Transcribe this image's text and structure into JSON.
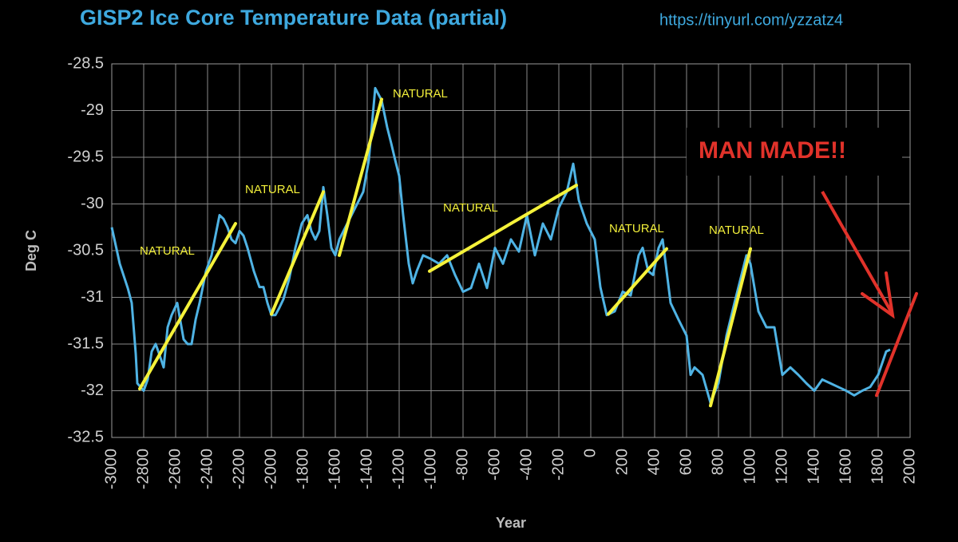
{
  "chart_data": {
    "type": "line",
    "title": "GISP2 Ice Core Temperature Data (partial)",
    "source": "https://tinyurl.com/yzzatz4",
    "x_label": "Year",
    "y_label": "Deg C",
    "xlim": [
      -3000,
      2000
    ],
    "ylim": [
      -32.5,
      -28.5
    ],
    "xticks": [
      -3000,
      -2800,
      -2600,
      -2400,
      -2200,
      -2000,
      -1800,
      -1600,
      -1400,
      -1200,
      -1000,
      -800,
      -600,
      -400,
      -200,
      0,
      200,
      400,
      600,
      800,
      1000,
      1200,
      1400,
      1600,
      1800,
      2000
    ],
    "yticks": [
      -28.5,
      -29,
      -29.5,
      -30,
      -30.5,
      -31,
      -31.5,
      -32,
      -32.5
    ],
    "grid": true,
    "series": [
      {
        "name": "GISP2",
        "color": "#4fb3e4",
        "x": [
          -3000,
          -2950,
          -2900,
          -2875,
          -2850,
          -2840,
          -2800,
          -2775,
          -2750,
          -2725,
          -2700,
          -2675,
          -2650,
          -2625,
          -2590,
          -2550,
          -2525,
          -2500,
          -2475,
          -2450,
          -2410,
          -2375,
          -2325,
          -2300,
          -2275,
          -2250,
          -2225,
          -2200,
          -2175,
          -2150,
          -2110,
          -2075,
          -2050,
          -2025,
          -2000,
          -1975,
          -1950,
          -1925,
          -1890,
          -1850,
          -1810,
          -1775,
          -1750,
          -1725,
          -1700,
          -1675,
          -1650,
          -1625,
          -1600,
          -1575,
          -1525,
          -1475,
          -1425,
          -1390,
          -1350,
          -1310,
          -1275,
          -1250,
          -1225,
          -1200,
          -1175,
          -1140,
          -1115,
          -1090,
          -1050,
          -1000,
          -950,
          -900,
          -850,
          -800,
          -750,
          -700,
          -650,
          -600,
          -550,
          -500,
          -450,
          -400,
          -350,
          -300,
          -250,
          -200,
          -150,
          -110,
          -75,
          -25,
          25,
          60,
          100,
          150,
          200,
          250,
          300,
          325,
          360,
          390,
          425,
          450,
          475,
          500,
          550,
          600,
          625,
          650,
          700,
          750,
          800,
          850,
          900,
          950,
          975,
          1000,
          1050,
          1100,
          1150,
          1200,
          1250,
          1300,
          1350,
          1400,
          1450,
          1500,
          1550,
          1600,
          1650,
          1700,
          1750,
          1800,
          1850,
          1875
        ],
        "values": [
          -30.25,
          -30.64,
          -30.9,
          -31.06,
          -31.6,
          -31.92,
          -32.0,
          -31.88,
          -31.58,
          -31.5,
          -31.62,
          -31.75,
          -31.32,
          -31.19,
          -31.06,
          -31.45,
          -31.5,
          -31.5,
          -31.24,
          -31.06,
          -30.72,
          -30.55,
          -30.12,
          -30.16,
          -30.25,
          -30.38,
          -30.42,
          -30.29,
          -30.34,
          -30.47,
          -30.72,
          -30.89,
          -30.89,
          -31.06,
          -31.19,
          -31.19,
          -31.11,
          -31.02,
          -30.81,
          -30.47,
          -30.21,
          -30.12,
          -30.29,
          -30.38,
          -30.29,
          -29.82,
          -30.12,
          -30.47,
          -30.55,
          -30.38,
          -30.21,
          -30.04,
          -29.87,
          -29.53,
          -28.76,
          -28.89,
          -29.18,
          -29.35,
          -29.53,
          -29.7,
          -30.12,
          -30.64,
          -30.85,
          -30.72,
          -30.55,
          -30.59,
          -30.64,
          -30.55,
          -30.76,
          -30.94,
          -30.9,
          -30.64,
          -30.9,
          -30.47,
          -30.64,
          -30.38,
          -30.51,
          -30.12,
          -30.55,
          -30.21,
          -30.38,
          -30.04,
          -29.87,
          -29.57,
          -29.96,
          -30.21,
          -30.38,
          -30.89,
          -31.19,
          -31.15,
          -30.94,
          -30.98,
          -30.55,
          -30.47,
          -30.72,
          -30.76,
          -30.47,
          -30.38,
          -30.72,
          -31.06,
          -31.24,
          -31.41,
          -31.83,
          -31.75,
          -31.83,
          -32.13,
          -31.92,
          -31.41,
          -31.06,
          -30.72,
          -30.55,
          -30.64,
          -31.15,
          -31.32,
          -31.32,
          -31.83,
          -31.75,
          -31.83,
          -31.92,
          -32.0,
          -31.88,
          -31.92,
          -31.96,
          -32.0,
          -32.05,
          -32.0,
          -31.96,
          -31.83,
          -31.58,
          -31.56
        ]
      }
    ],
    "annotations": [
      {
        "label": "NATURAL",
        "color": "#f5f23a",
        "line": [
          -2825,
          -31.98,
          -2225,
          -30.21
        ]
      },
      {
        "label": "NATURAL",
        "color": "#f5f23a",
        "line": [
          -2000,
          -31.18,
          -1675,
          -29.87
        ]
      },
      {
        "label": "NATURAL",
        "color": "#f5f23a",
        "line": [
          -1575,
          -30.55,
          -1310,
          -28.88
        ]
      },
      {
        "label": "NATURAL",
        "color": "#f5f23a",
        "line": [
          -1010,
          -30.72,
          -90,
          -29.8
        ]
      },
      {
        "label": "NATURAL",
        "color": "#f5f23a",
        "line": [
          110,
          -31.18,
          475,
          -30.48
        ]
      },
      {
        "label": "NATURAL",
        "color": "#f5f23a",
        "line": [
          750,
          -32.16,
          1000,
          -30.48
        ]
      },
      {
        "label": "MAN MADE!!",
        "color": "#e1322a",
        "line": [
          1790,
          -32.05,
          2040,
          -30.96
        ]
      }
    ]
  }
}
